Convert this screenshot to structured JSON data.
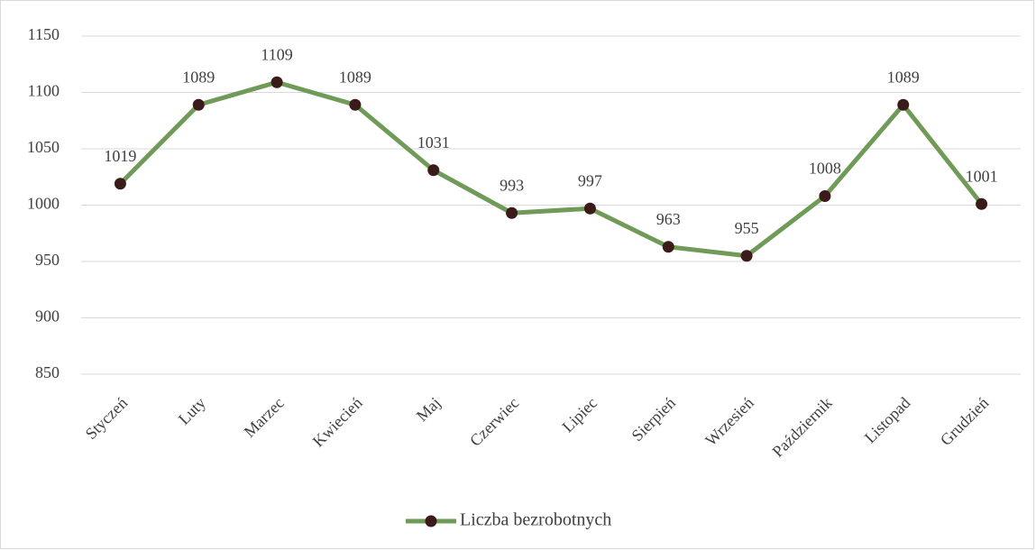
{
  "chart_data": {
    "type": "line",
    "categories": [
      "Styczeń",
      "Luty",
      "Marzec",
      "Kwiecień",
      "Maj",
      "Czerwiec",
      "Lipiec",
      "Sierpień",
      "Wrzesień",
      "Październik",
      "Listopad",
      "Grudzień"
    ],
    "series": [
      {
        "name": "Liczba bezrobotnych",
        "color": "#6f9a58",
        "marker_color": "#3b1a1a",
        "values": [
          1019,
          1089,
          1109,
          1089,
          1031,
          993,
          997,
          963,
          955,
          1008,
          1089,
          1001
        ]
      }
    ],
    "ylim": [
      850,
      1150
    ],
    "yticks": [
      850,
      900,
      950,
      1000,
      1050,
      1100,
      1150
    ],
    "grid": true,
    "legend": "bottom"
  }
}
